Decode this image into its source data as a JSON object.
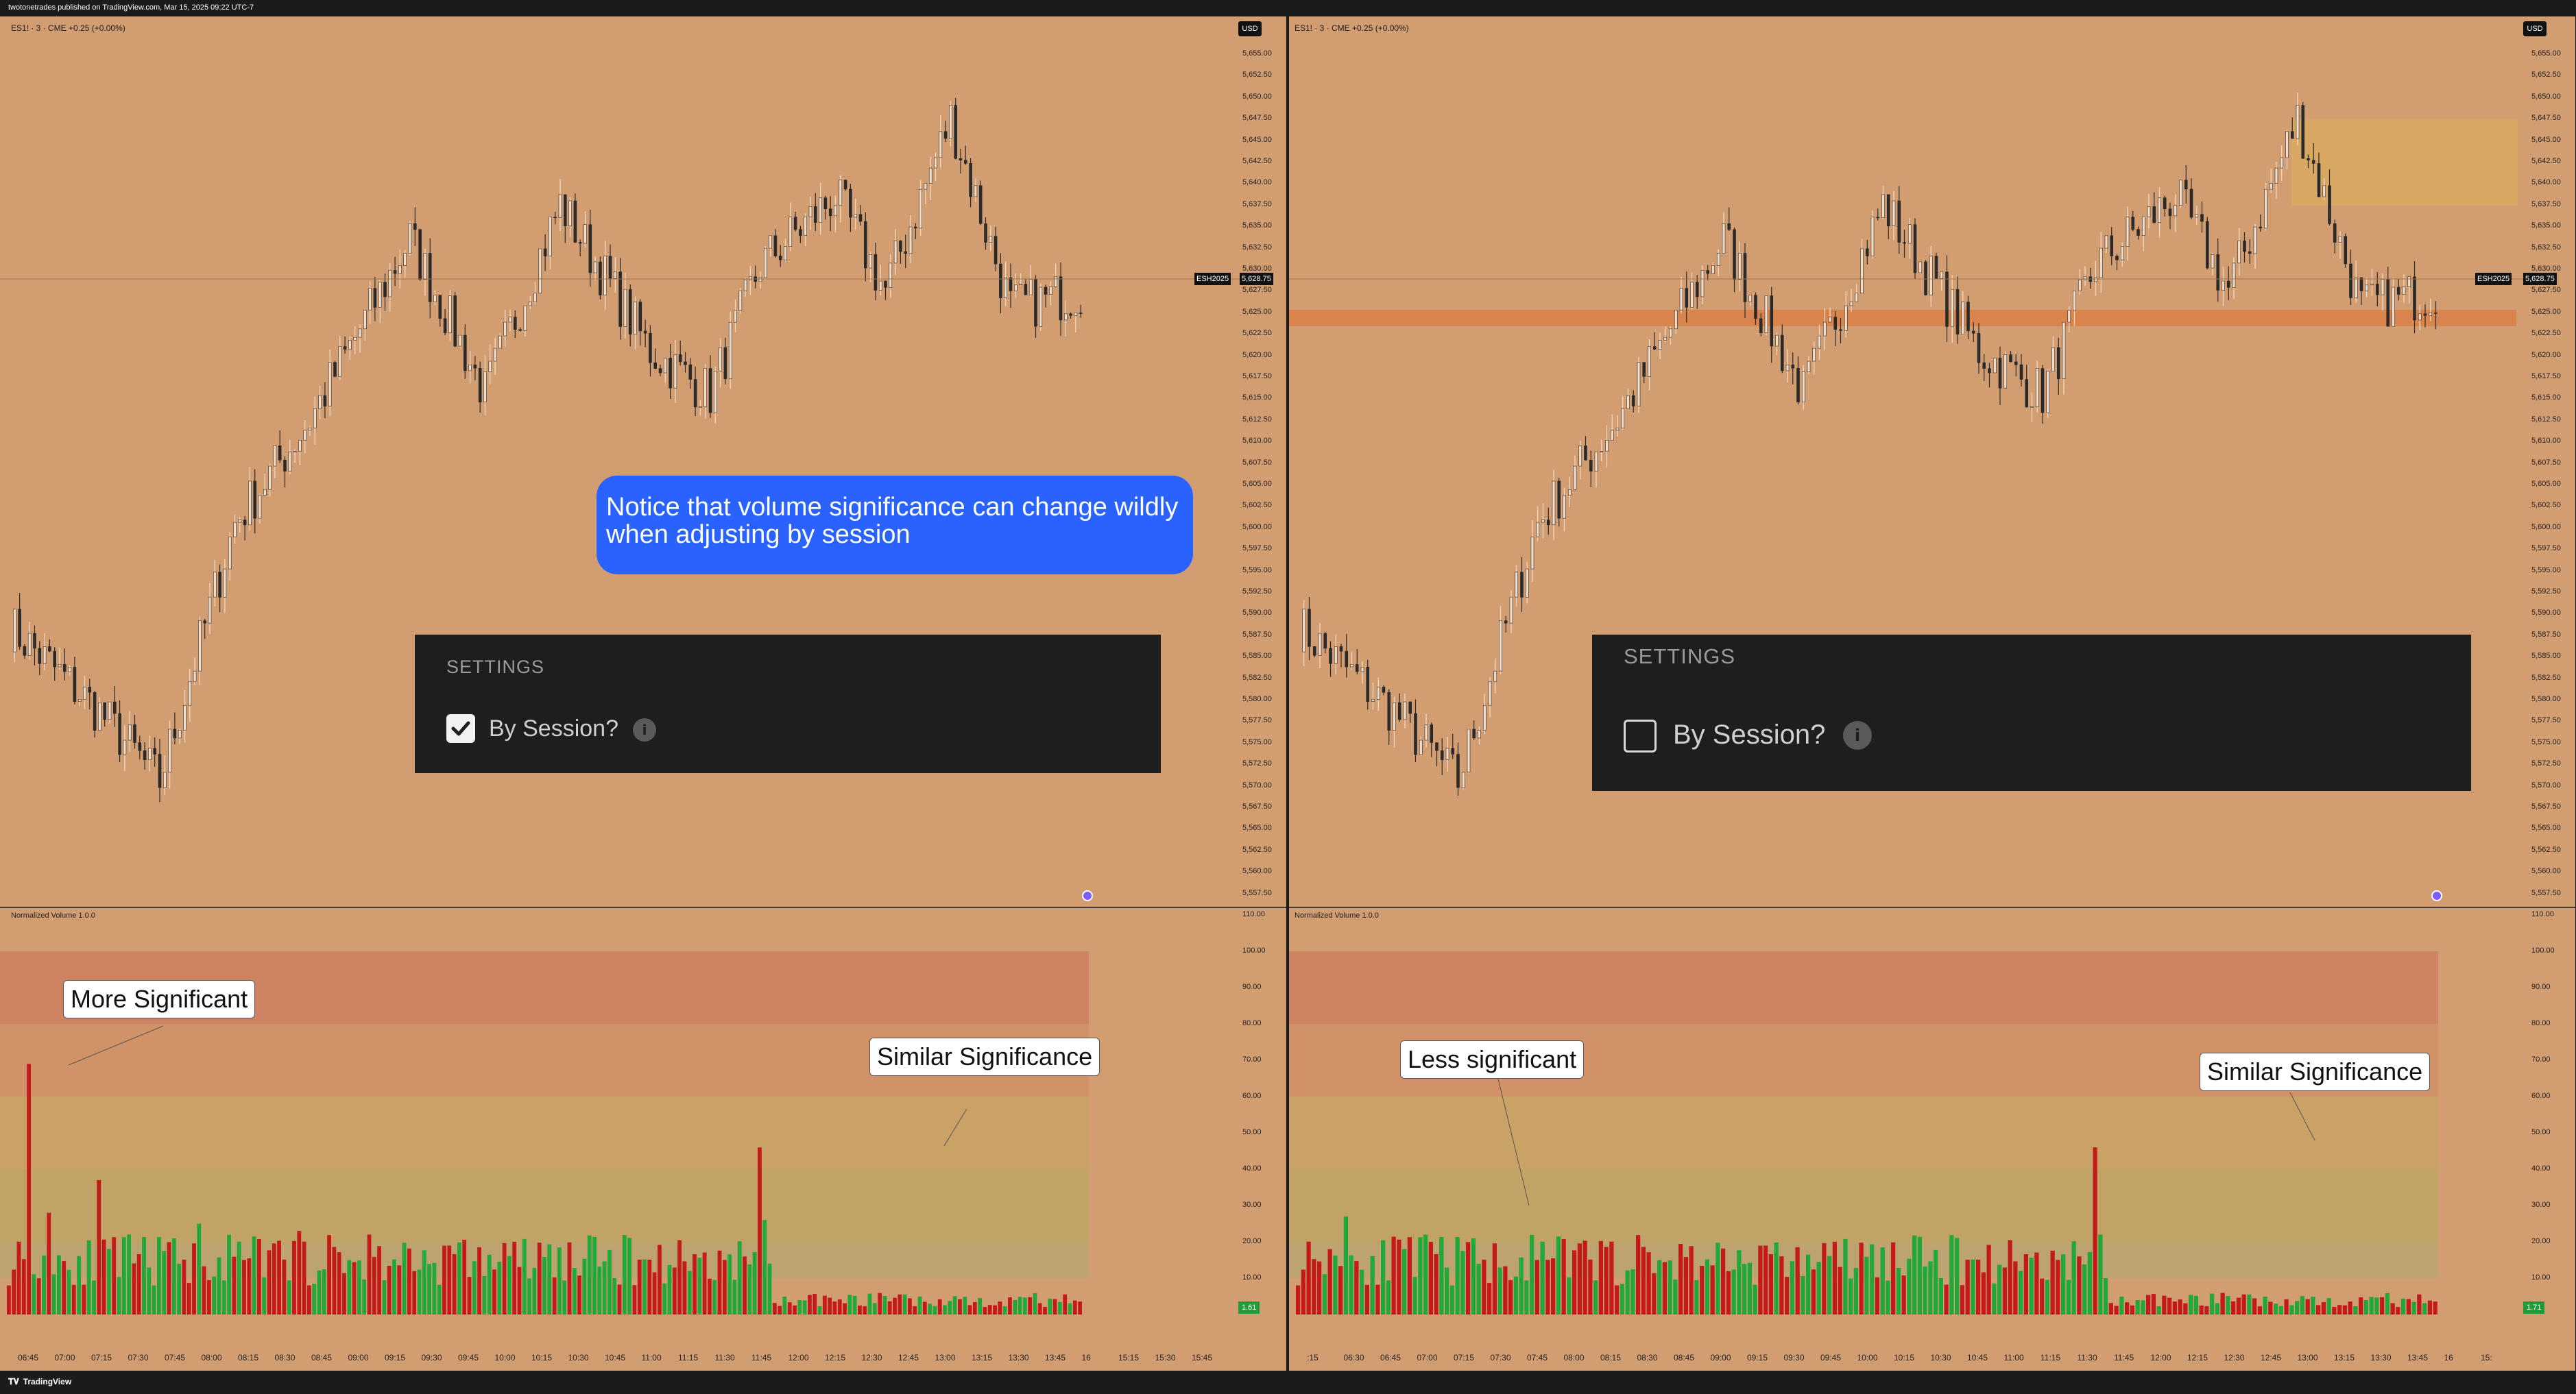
{
  "header": {
    "title": "twotonetrades published on TradingView.com, Mar 15, 2025 09:22 UTC-7"
  },
  "footer": {
    "brand": "TradingView"
  },
  "common": {
    "symbol_label": "ES1! · 3 · CME  +0.25 (+0.00%)",
    "currency": "USD",
    "symbol_tag": "ESH2025",
    "price_tag": "5,628.75",
    "indicator": "Normalized Volume 1.0.0",
    "price_ticks": [
      "5,655.00",
      "5,652.50",
      "5,650.00",
      "5,647.50",
      "5,645.00",
      "5,642.50",
      "5,640.00",
      "5,637.50",
      "5,635.00",
      "5,632.50",
      "5,630.00",
      "5,627.50",
      "5,625.00",
      "5,622.50",
      "5,620.00",
      "5,617.50",
      "5,615.00",
      "5,612.50",
      "5,610.00",
      "5,607.50",
      "5,605.00",
      "5,602.50",
      "5,600.00",
      "5,597.50",
      "5,595.00",
      "5,592.50",
      "5,590.00",
      "5,587.50",
      "5,585.00",
      "5,582.50",
      "5,580.00",
      "5,577.50",
      "5,575.00",
      "5,572.50",
      "5,570.00",
      "5,567.50",
      "5,565.00",
      "5,562.50",
      "5,560.00",
      "5,557.50"
    ],
    "volume_ticks": [
      "110.00",
      "100.00",
      "90.00",
      "80.00",
      "70.00",
      "60.00",
      "50.00",
      "40.00",
      "30.00",
      "20.00",
      "10.00"
    ]
  },
  "left": {
    "time_ticks": [
      "06:45",
      "07:00",
      "07:15",
      "07:30",
      "07:45",
      "08:00",
      "08:15",
      "08:30",
      "08:45",
      "09:00",
      "09:15",
      "09:30",
      "09:45",
      "10:00",
      "10:15",
      "10:30",
      "10:45",
      "11:00",
      "11:15",
      "11:30",
      "11:45",
      "12:00",
      "12:15",
      "12:30",
      "12:45",
      "13:00",
      "13:15",
      "13:30",
      "13:45",
      "16",
      "15:15",
      "15:30",
      "15:45"
    ],
    "settings_title": "SETTINGS",
    "option_label": "By Session?",
    "checked": true,
    "last_volume": "1.61",
    "callout_first": "More Significant",
    "callout_second": "Similar Significance",
    "note": "Notice that volume significance can change wildly when adjusting by session"
  },
  "right": {
    "time_ticks": [
      ":15",
      "06:30",
      "06:45",
      "07:00",
      "07:15",
      "07:30",
      "07:45",
      "08:00",
      "08:15",
      "08:30",
      "08:45",
      "09:00",
      "09:15",
      "09:30",
      "09:45",
      "10:00",
      "10:15",
      "10:30",
      "10:45",
      "11:00",
      "11:15",
      "11:30",
      "11:45",
      "12:00",
      "12:15",
      "12:30",
      "12:45",
      "13:00",
      "13:15",
      "13:30",
      "13:45",
      "16",
      "15:"
    ],
    "settings_title": "SETTINGS",
    "option_label": "By Session?",
    "checked": false,
    "last_volume": "1.71",
    "callout_first": "Less significant",
    "callout_second": "Similar Significance"
  },
  "colors": {
    "background": "#d39d72",
    "up_candle": "#f2ddc9",
    "down_candle": "#2a2a2a",
    "volume_up": "#20a83a",
    "volume_down": "#c41a1a",
    "zone_extreme": "#cc8060",
    "zone_high": "#d09066",
    "zone_mid": "#c8a364",
    "zone_normal": "#bca563",
    "zone_low": "#b8a56e",
    "highlight_zone": "#e07030",
    "supply_zone": "#d8aa60",
    "note_bubble": "#2962ff"
  },
  "icons": {
    "check": "check-icon",
    "info": "info-icon",
    "logo": "tradingview-logo"
  }
}
